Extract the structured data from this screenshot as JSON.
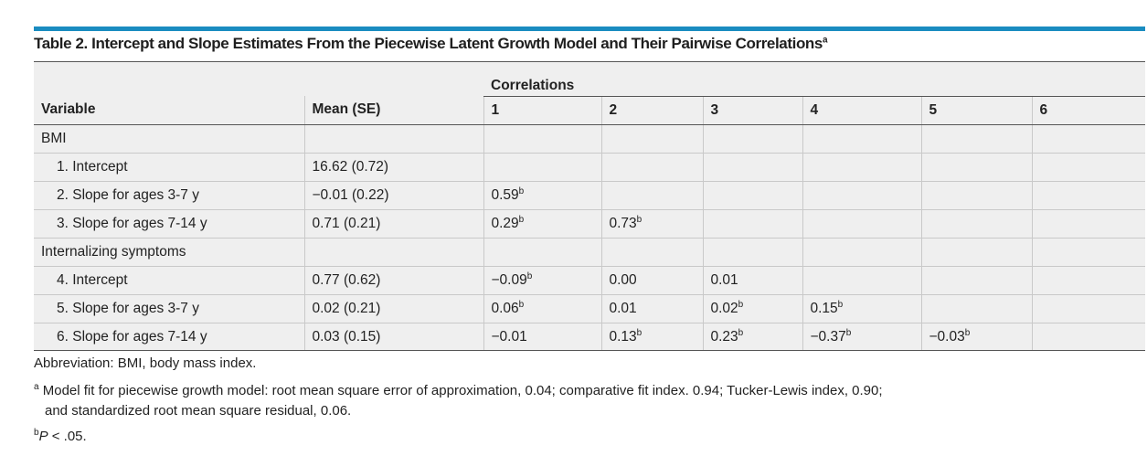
{
  "title": {
    "text": "Table 2. Intercept and Slope Estimates From the Piecewise Latent Growth Model and Their Pairwise Correlations",
    "sup": "a"
  },
  "header": {
    "correlations": "Correlations",
    "variable": "Variable",
    "mean_se": "Mean (SE)",
    "columns": [
      "1",
      "2",
      "3",
      "4",
      "5",
      "6"
    ]
  },
  "groups": [
    {
      "label": "BMI",
      "rows": [
        {
          "label": "1. Intercept",
          "mean": "16.62 (0.72)",
          "cells": []
        },
        {
          "label": "2. Slope for ages 3-7 y",
          "mean": "−0.01 (0.22)",
          "cells": [
            {
              "v": "0.59",
              "sup": "b"
            }
          ]
        },
        {
          "label": "3. Slope for ages 7-14 y",
          "mean": "0.71 (0.21)",
          "cells": [
            {
              "v": "0.29",
              "sup": "b"
            },
            {
              "v": "0.73",
              "sup": "b"
            }
          ]
        }
      ]
    },
    {
      "label": "Internalizing symptoms",
      "rows": [
        {
          "label": "4. Intercept",
          "mean": "0.77 (0.62)",
          "cells": [
            {
              "v": "−0.09",
              "sup": "b"
            },
            {
              "v": "0.00",
              "sup": ""
            },
            {
              "v": "0.01",
              "sup": ""
            }
          ]
        },
        {
          "label": "5. Slope for ages 3-7 y",
          "mean": "0.02 (0.21)",
          "cells": [
            {
              "v": "0.06",
              "sup": "b"
            },
            {
              "v": "0.01",
              "sup": ""
            },
            {
              "v": "0.02",
              "sup": "b"
            },
            {
              "v": "0.15",
              "sup": "b"
            }
          ]
        },
        {
          "label": "6. Slope for ages 7-14 y",
          "mean": "0.03 (0.15)",
          "cells": [
            {
              "v": "−0.01",
              "sup": ""
            },
            {
              "v": "0.13",
              "sup": "b"
            },
            {
              "v": "0.23",
              "sup": "b"
            },
            {
              "v": "−0.37",
              "sup": "b"
            },
            {
              "v": "−0.03",
              "sup": "b"
            }
          ]
        }
      ]
    }
  ],
  "footnotes": {
    "abbreviation": "Abbreviation: BMI, body mass index.",
    "a_marker": "a",
    "a_line1": "Model fit for piecewise growth model: root mean square error of approximation, 0.04; comparative fit index. 0.94; Tucker-Lewis index, 0.90;",
    "a_line2": "and standardized root mean square residual, 0.06.",
    "b_marker": "b",
    "b_p": "P",
    "b_text": " < .05."
  },
  "colors": {
    "accent_rule": "#1a8cc0",
    "table_bg": "#efefef"
  }
}
